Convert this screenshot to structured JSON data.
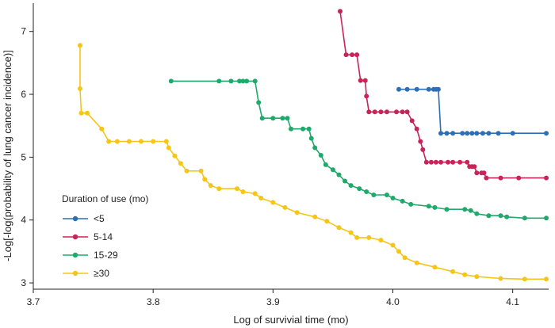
{
  "chart_data": {
    "type": "line",
    "title": "",
    "xlabel": "Log of survivial time (mo)",
    "ylabel": "-Log[-log(probability of lung cancer incidence)]",
    "xlim": [
      3.7,
      4.13
    ],
    "ylim": [
      2.9,
      7.45
    ],
    "xticks": [
      3.7,
      3.8,
      3.9,
      4.0,
      4.1
    ],
    "xtick_labels": [
      "3.7",
      "3.8",
      "3.9",
      "4.0",
      "4.1"
    ],
    "yticks": [
      3,
      4,
      5,
      6,
      7
    ],
    "ytick_labels": [
      "3",
      "4",
      "5",
      "6",
      "7"
    ],
    "legend": {
      "title": "Duration of use (mo)",
      "position": "lower-left",
      "entries": [
        "<5",
        "5-14",
        "15-29",
        "≥30"
      ]
    },
    "series": [
      {
        "name": "<5",
        "color": "#2b6fb6",
        "step": false,
        "points": [
          [
            4.005,
            6.08
          ],
          [
            4.012,
            6.08
          ],
          [
            4.02,
            6.08
          ],
          [
            4.03,
            6.08
          ],
          [
            4.034,
            6.08
          ],
          [
            4.036,
            6.08
          ],
          [
            4.038,
            6.08
          ],
          [
            4.04,
            5.38
          ],
          [
            4.045,
            5.38
          ],
          [
            4.05,
            5.38
          ],
          [
            4.058,
            5.38
          ],
          [
            4.062,
            5.38
          ],
          [
            4.066,
            5.38
          ],
          [
            4.07,
            5.38
          ],
          [
            4.075,
            5.38
          ],
          [
            4.08,
            5.38
          ],
          [
            4.088,
            5.38
          ],
          [
            4.1,
            5.38
          ],
          [
            4.128,
            5.38
          ]
        ]
      },
      {
        "name": "5-14",
        "color": "#c8245a",
        "step": false,
        "points": [
          [
            3.956,
            7.32
          ],
          [
            3.961,
            6.63
          ],
          [
            3.966,
            6.63
          ],
          [
            3.97,
            6.63
          ],
          [
            3.973,
            6.22
          ],
          [
            3.977,
            6.22
          ],
          [
            3.978,
            5.97
          ],
          [
            3.98,
            5.72
          ],
          [
            3.985,
            5.72
          ],
          [
            3.99,
            5.72
          ],
          [
            3.995,
            5.72
          ],
          [
            4.003,
            5.72
          ],
          [
            4.008,
            5.72
          ],
          [
            4.012,
            5.72
          ],
          [
            4.016,
            5.58
          ],
          [
            4.02,
            5.45
          ],
          [
            4.023,
            5.25
          ],
          [
            4.025,
            5.12
          ],
          [
            4.028,
            4.92
          ],
          [
            4.032,
            4.92
          ],
          [
            4.036,
            4.92
          ],
          [
            4.04,
            4.92
          ],
          [
            4.046,
            4.92
          ],
          [
            4.05,
            4.92
          ],
          [
            4.056,
            4.92
          ],
          [
            4.062,
            4.92
          ],
          [
            4.064,
            4.85
          ],
          [
            4.066,
            4.85
          ],
          [
            4.068,
            4.85
          ],
          [
            4.07,
            4.75
          ],
          [
            4.074,
            4.75
          ],
          [
            4.076,
            4.75
          ],
          [
            4.078,
            4.67
          ],
          [
            4.09,
            4.67
          ],
          [
            4.105,
            4.67
          ],
          [
            4.128,
            4.67
          ]
        ]
      },
      {
        "name": "15-29",
        "color": "#1fa96a",
        "step": false,
        "points": [
          [
            3.815,
            6.21
          ],
          [
            3.855,
            6.21
          ],
          [
            3.865,
            6.21
          ],
          [
            3.872,
            6.21
          ],
          [
            3.875,
            6.21
          ],
          [
            3.878,
            6.21
          ],
          [
            3.885,
            6.21
          ],
          [
            3.888,
            5.87
          ],
          [
            3.891,
            5.62
          ],
          [
            3.9,
            5.62
          ],
          [
            3.908,
            5.62
          ],
          [
            3.912,
            5.62
          ],
          [
            3.915,
            5.45
          ],
          [
            3.925,
            5.45
          ],
          [
            3.93,
            5.45
          ],
          [
            3.932,
            5.3
          ],
          [
            3.935,
            5.15
          ],
          [
            3.94,
            5.03
          ],
          [
            3.944,
            4.88
          ],
          [
            3.95,
            4.8
          ],
          [
            3.955,
            4.72
          ],
          [
            3.96,
            4.62
          ],
          [
            3.965,
            4.55
          ],
          [
            3.972,
            4.5
          ],
          [
            3.978,
            4.45
          ],
          [
            3.984,
            4.4
          ],
          [
            3.995,
            4.4
          ],
          [
            4.0,
            4.35
          ],
          [
            4.008,
            4.3
          ],
          [
            4.015,
            4.25
          ],
          [
            4.03,
            4.22
          ],
          [
            4.035,
            4.2
          ],
          [
            4.045,
            4.17
          ],
          [
            4.06,
            4.17
          ],
          [
            4.065,
            4.15
          ],
          [
            4.07,
            4.1
          ],
          [
            4.08,
            4.07
          ],
          [
            4.09,
            4.07
          ],
          [
            4.095,
            4.05
          ],
          [
            4.11,
            4.03
          ],
          [
            4.128,
            4.03
          ]
        ]
      },
      {
        "name": "≥30",
        "color": "#f5c518",
        "step": false,
        "points": [
          [
            3.739,
            6.78
          ],
          [
            3.739,
            6.09
          ],
          [
            3.74,
            5.7
          ],
          [
            3.745,
            5.7
          ],
          [
            3.757,
            5.45
          ],
          [
            3.763,
            5.25
          ],
          [
            3.77,
            5.25
          ],
          [
            3.78,
            5.25
          ],
          [
            3.79,
            5.25
          ],
          [
            3.8,
            5.25
          ],
          [
            3.811,
            5.25
          ],
          [
            3.813,
            5.15
          ],
          [
            3.818,
            5.02
          ],
          [
            3.823,
            4.9
          ],
          [
            3.828,
            4.78
          ],
          [
            3.84,
            4.78
          ],
          [
            3.843,
            4.65
          ],
          [
            3.848,
            4.55
          ],
          [
            3.855,
            4.5
          ],
          [
            3.87,
            4.5
          ],
          [
            3.875,
            4.45
          ],
          [
            3.885,
            4.42
          ],
          [
            3.89,
            4.35
          ],
          [
            3.9,
            4.28
          ],
          [
            3.91,
            4.2
          ],
          [
            3.92,
            4.12
          ],
          [
            3.935,
            4.05
          ],
          [
            3.945,
            3.98
          ],
          [
            3.955,
            3.88
          ],
          [
            3.965,
            3.8
          ],
          [
            3.97,
            3.72
          ],
          [
            3.98,
            3.72
          ],
          [
            3.99,
            3.68
          ],
          [
            4.0,
            3.6
          ],
          [
            4.005,
            3.5
          ],
          [
            4.01,
            3.4
          ],
          [
            4.02,
            3.32
          ],
          [
            4.035,
            3.25
          ],
          [
            4.05,
            3.18
          ],
          [
            4.06,
            3.13
          ],
          [
            4.07,
            3.1
          ],
          [
            4.09,
            3.07
          ],
          [
            4.11,
            3.06
          ],
          [
            4.128,
            3.06
          ]
        ]
      }
    ]
  }
}
